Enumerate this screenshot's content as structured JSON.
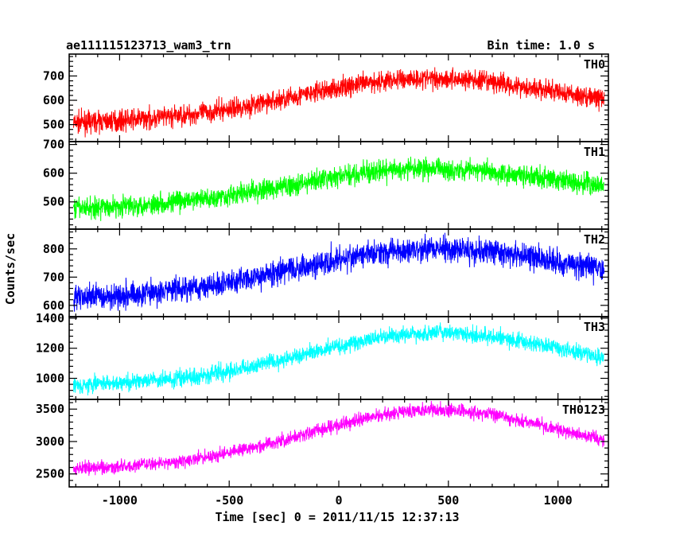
{
  "header": {
    "title": "ae111115123713_wam3_trn",
    "bin_time": "Bin time: 1.0 s"
  },
  "chart_data": {
    "type": "line",
    "xlabel": "Time [sec] 0 = 2011/11/15 12:37:13",
    "ylabel": "Counts/sec",
    "xlim": [
      -1230,
      1230
    ],
    "xticks": [
      -1000,
      -500,
      0,
      500,
      1000
    ],
    "x_range": [
      -1210,
      1210
    ],
    "panels": [
      {
        "name": "TH0",
        "color": "#ff0000",
        "ylim": [
          430,
          790
        ],
        "yticks": [
          500,
          600,
          700
        ],
        "shape": {
          "base": 505,
          "base_slope": 25,
          "peak": 690,
          "center": 380,
          "width": 560,
          "noise": 30
        }
      },
      {
        "name": "TH1",
        "color": "#00ff00",
        "ylim": [
          405,
          710
        ],
        "yticks": [
          500,
          600,
          700
        ],
        "shape": {
          "base": 475,
          "base_slope": 20,
          "peak": 615,
          "center": 380,
          "width": 580,
          "noise": 26
        }
      },
      {
        "name": "TH2",
        "color": "#0000ff",
        "ylim": [
          560,
          870
        ],
        "yticks": [
          600,
          700,
          800
        ],
        "shape": {
          "base": 625,
          "base_slope": 25,
          "peak": 800,
          "center": 400,
          "width": 580,
          "noise": 32
        }
      },
      {
        "name": "TH3",
        "color": "#00ffff",
        "ylim": [
          860,
          1410
        ],
        "yticks": [
          1000,
          1200,
          1400
        ],
        "shape": {
          "base": 950,
          "base_slope": 40,
          "peak": 1300,
          "center": 420,
          "width": 560,
          "noise": 38
        }
      },
      {
        "name": "TH0123",
        "color": "#ff00ff",
        "ylim": [
          2300,
          3650
        ],
        "yticks": [
          2500,
          3000,
          3500
        ],
        "shape": {
          "base": 2570,
          "base_slope": 80,
          "peak": 3480,
          "center": 420,
          "width": 560,
          "noise": 75
        }
      }
    ]
  }
}
